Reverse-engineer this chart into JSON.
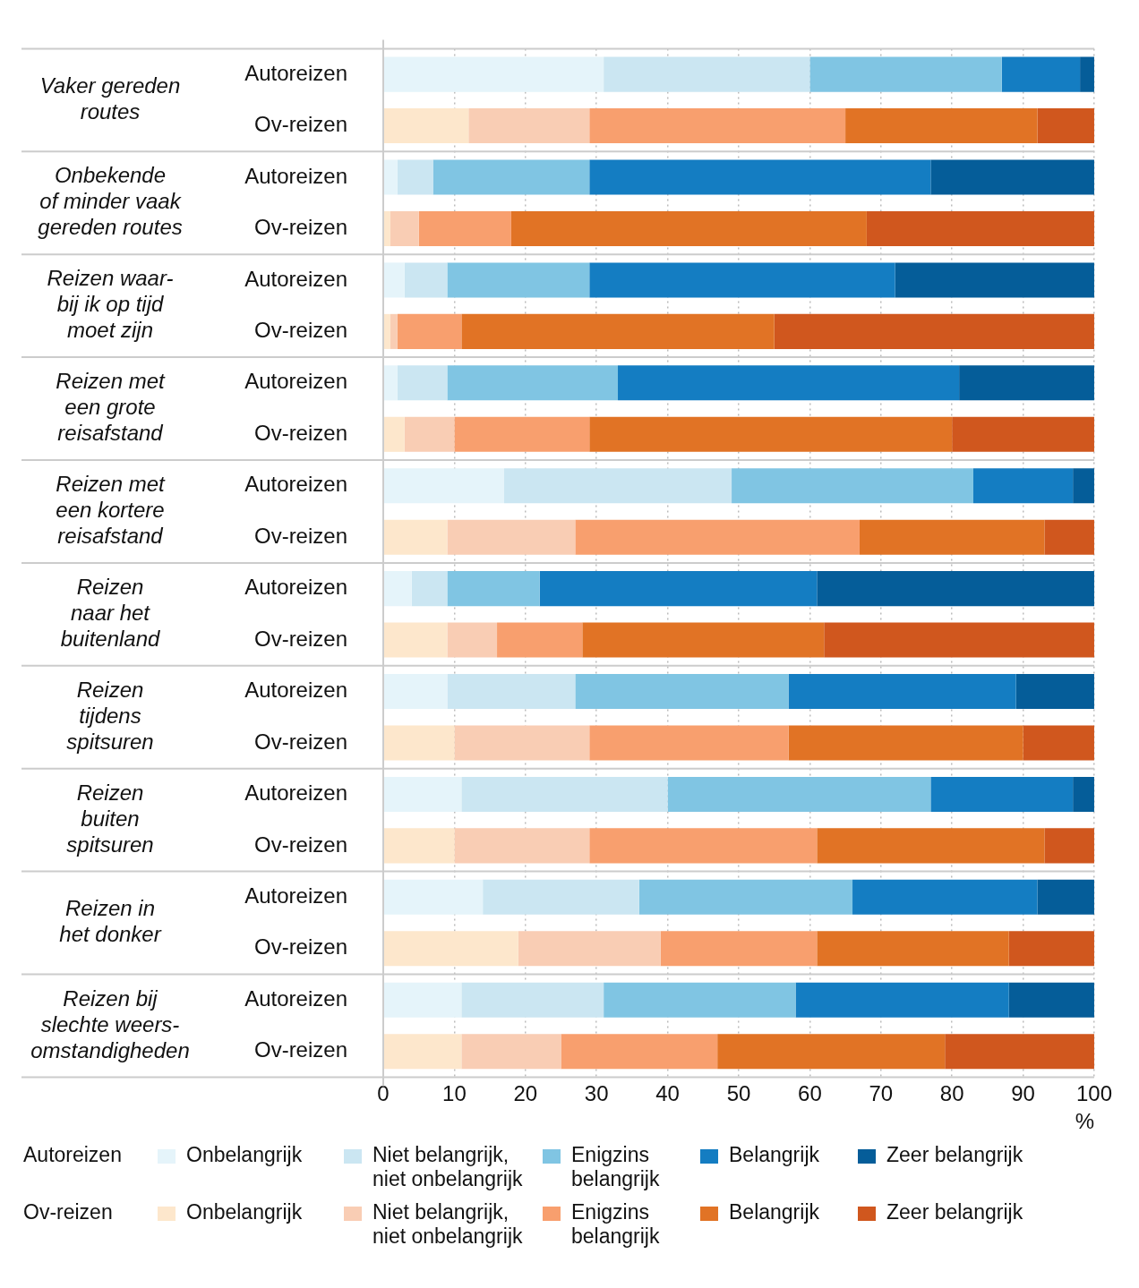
{
  "chart_data": {
    "type": "bar",
    "orientation": "horizontal",
    "stacked": true,
    "categories": [
      "Autoreizen",
      "Ov-reizen",
      "Autoreizen",
      "Ov-reizen",
      "Autoreizen",
      "Ov-reizen",
      "Autoreizen",
      "Ov-reizen",
      "Autoreizen",
      "Ov-reizen",
      "Autoreizen",
      "Ov-reizen",
      "Autoreizen",
      "Ov-reizen",
      "Autoreizen",
      "Ov-reizen",
      "Autoreizen",
      "Ov-reizen",
      "Autoreizen",
      "Ov-reizen"
    ],
    "annotations": [
      "Vaker gereden\nroutes",
      "Onbekende\nof minder vaak\ngereden routes",
      "Reizen waar-\nbij ik op tijd\nmoet zijn",
      "Reizen met\neen grote\nreisafstand",
      "Reizen met\neen kortere\nreisafstand",
      "Reizen\nnaar het\nbuitenland",
      "Reizen\ntijdens\nspitsuren",
      "Reizen\nbuiten\nspitsuren",
      "Reizen in\nhet donker",
      "Reizen bij\nslechte weers-\nomstandigheden"
    ],
    "xlabel": "%",
    "xlim": [
      0,
      100
    ],
    "xticks": [
      0,
      10,
      20,
      30,
      40,
      50,
      60,
      70,
      80,
      90,
      100
    ],
    "grid": "x",
    "legend": "bottom",
    "series": [
      {
        "name": "Onbelangrijk",
        "color": "#e5f4fa",
        "values": [
          31,
          null,
          2,
          null,
          3,
          null,
          2,
          null,
          17,
          null,
          4,
          null,
          9,
          null,
          11,
          null,
          14,
          null,
          11,
          null
        ]
      },
      {
        "name": "Niet belangrijk, niet onbelangrijk",
        "color": "#cbe6f2",
        "values": [
          29,
          null,
          5,
          null,
          6,
          null,
          7,
          null,
          32,
          null,
          5,
          null,
          18,
          null,
          29,
          null,
          22,
          null,
          20,
          null
        ]
      },
      {
        "name": "Enigzins belangrijk",
        "color": "#80c5e3",
        "values": [
          27,
          null,
          22,
          null,
          20,
          null,
          24,
          null,
          34,
          null,
          13,
          null,
          30,
          null,
          37,
          null,
          30,
          null,
          27,
          null
        ]
      },
      {
        "name": "Belangrijk",
        "color": "#147dc2",
        "values": [
          11,
          null,
          48,
          null,
          43,
          null,
          48,
          null,
          14,
          null,
          39,
          null,
          32,
          null,
          20,
          null,
          26,
          null,
          30,
          null
        ]
      },
      {
        "name": "Zeer belangrijk",
        "color": "#055d99",
        "values": [
          2,
          null,
          23,
          null,
          28,
          null,
          19,
          null,
          3,
          null,
          39,
          null,
          11,
          null,
          3,
          null,
          8,
          null,
          12,
          null
        ]
      },
      {
        "name": "Onbelangrijk",
        "color": "#fde7cc",
        "values": [
          null,
          12,
          null,
          1,
          null,
          1,
          null,
          3,
          null,
          9,
          null,
          9,
          null,
          10,
          null,
          10,
          null,
          19,
          null,
          11
        ]
      },
      {
        "name": "Niet belangrijk, niet onbelangrijk",
        "color": "#f9cdb4",
        "values": [
          null,
          17,
          null,
          4,
          null,
          1,
          null,
          7,
          null,
          18,
          null,
          7,
          null,
          19,
          null,
          19,
          null,
          20,
          null,
          14
        ]
      },
      {
        "name": "Enigzins belangrijk",
        "color": "#f89f6e",
        "values": [
          null,
          36,
          null,
          13,
          null,
          9,
          null,
          19,
          null,
          40,
          null,
          12,
          null,
          28,
          null,
          32,
          null,
          22,
          null,
          22
        ]
      },
      {
        "name": "Belangrijk",
        "color": "#e17325",
        "values": [
          null,
          27,
          null,
          50,
          null,
          44,
          null,
          51,
          null,
          26,
          null,
          34,
          null,
          33,
          null,
          32,
          null,
          27,
          null,
          32
        ]
      },
      {
        "name": "Zeer belangrijk",
        "color": "#d0571e",
        "values": [
          null,
          8,
          null,
          32,
          null,
          45,
          null,
          20,
          null,
          7,
          null,
          38,
          null,
          10,
          null,
          7,
          null,
          12,
          null,
          21
        ]
      }
    ]
  }
}
